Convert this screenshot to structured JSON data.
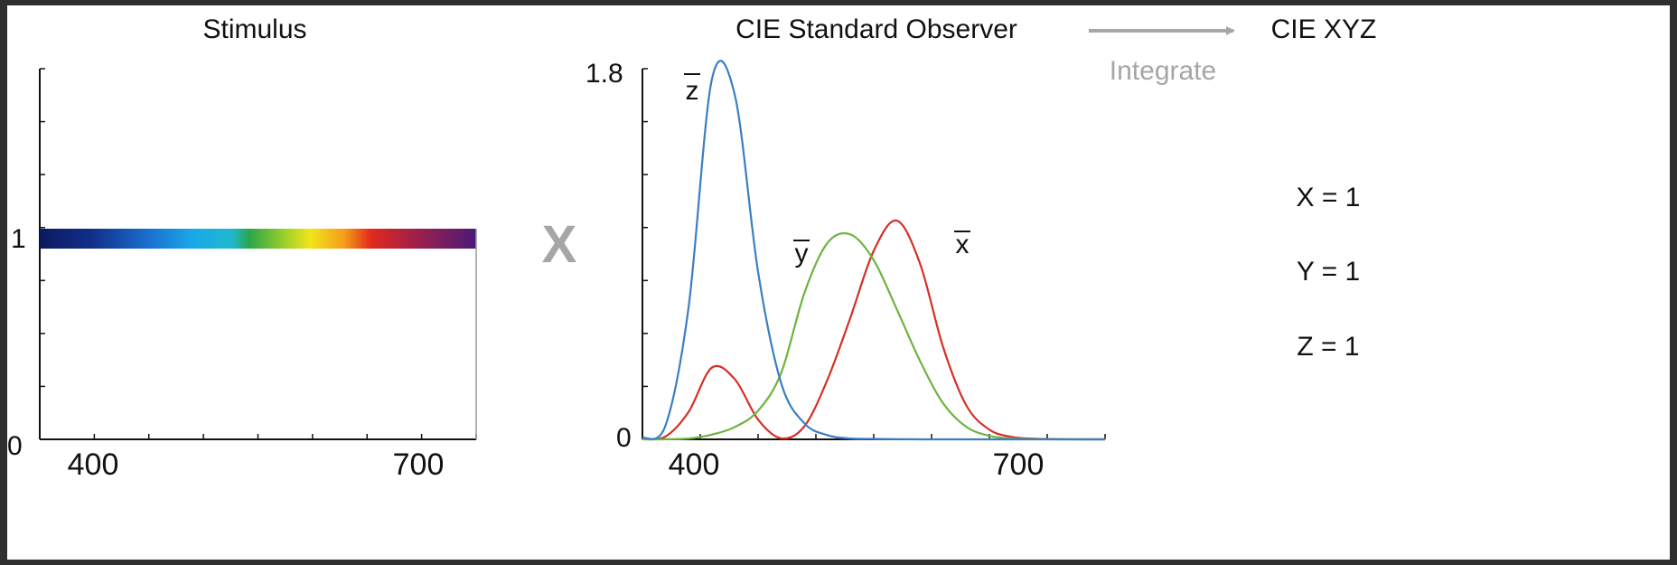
{
  "stimulus": {
    "title": "Stimulus",
    "y_ticks": {
      "top": "1",
      "bottom": "0"
    },
    "x_ticks": [
      "400",
      "700"
    ]
  },
  "multiply_symbol": "X",
  "observer": {
    "title": "CIE Standard Observer",
    "y_ticks": {
      "top": "1.8",
      "bottom": "0"
    },
    "x_ticks": [
      "400",
      "700"
    ],
    "curve_labels": {
      "x": "x",
      "y": "y",
      "z": "z"
    }
  },
  "arrow": {
    "label": "Integrate",
    "target": "CIE XYZ"
  },
  "results": [
    "X = 1",
    "Y = 1",
    "Z = 1"
  ],
  "colors": {
    "x_bar": "#d62f26",
    "y_bar": "#6db33f",
    "z_bar": "#3a7fc1",
    "axis": "#111111",
    "gray": "#a6a6a6"
  },
  "chart_data": [
    {
      "type": "line",
      "title": "Stimulus",
      "x": [
        380,
        780
      ],
      "series": [
        {
          "values": [
            1,
            1
          ]
        }
      ],
      "ylim": [
        0,
        1.8
      ],
      "xticks": [
        400,
        700
      ]
    },
    {
      "type": "line",
      "title": "CIE Standard Observer",
      "x": [
        380,
        400,
        420,
        440,
        460,
        480,
        500,
        520,
        540,
        560,
        580,
        600,
        620,
        640,
        660,
        680,
        700,
        720,
        740,
        760,
        780
      ],
      "series": [
        {
          "name": "x",
          "values": [
            0.001,
            0.014,
            0.134,
            0.348,
            0.291,
            0.096,
            0.005,
            0.063,
            0.29,
            0.594,
            0.916,
            1.062,
            0.854,
            0.448,
            0.165,
            0.047,
            0.011,
            0.003,
            0.001,
            0.0,
            0.0
          ]
        },
        {
          "name": "y",
          "values": [
            0.0,
            0.0004,
            0.004,
            0.023,
            0.06,
            0.139,
            0.323,
            0.71,
            0.954,
            0.995,
            0.87,
            0.631,
            0.381,
            0.175,
            0.061,
            0.017,
            0.004,
            0.001,
            0.0,
            0.0,
            0.0
          ]
        },
        {
          "name": "z",
          "values": [
            0.007,
            0.068,
            0.646,
            1.747,
            1.669,
            0.813,
            0.272,
            0.078,
            0.02,
            0.004,
            0.002,
            0.001,
            0.0,
            0.0,
            0.0,
            0.0,
            0.0,
            0.0,
            0.0,
            0.0,
            0.0
          ]
        }
      ],
      "ylim": [
        0,
        1.8
      ],
      "xticks": [
        400,
        700
      ]
    }
  ]
}
